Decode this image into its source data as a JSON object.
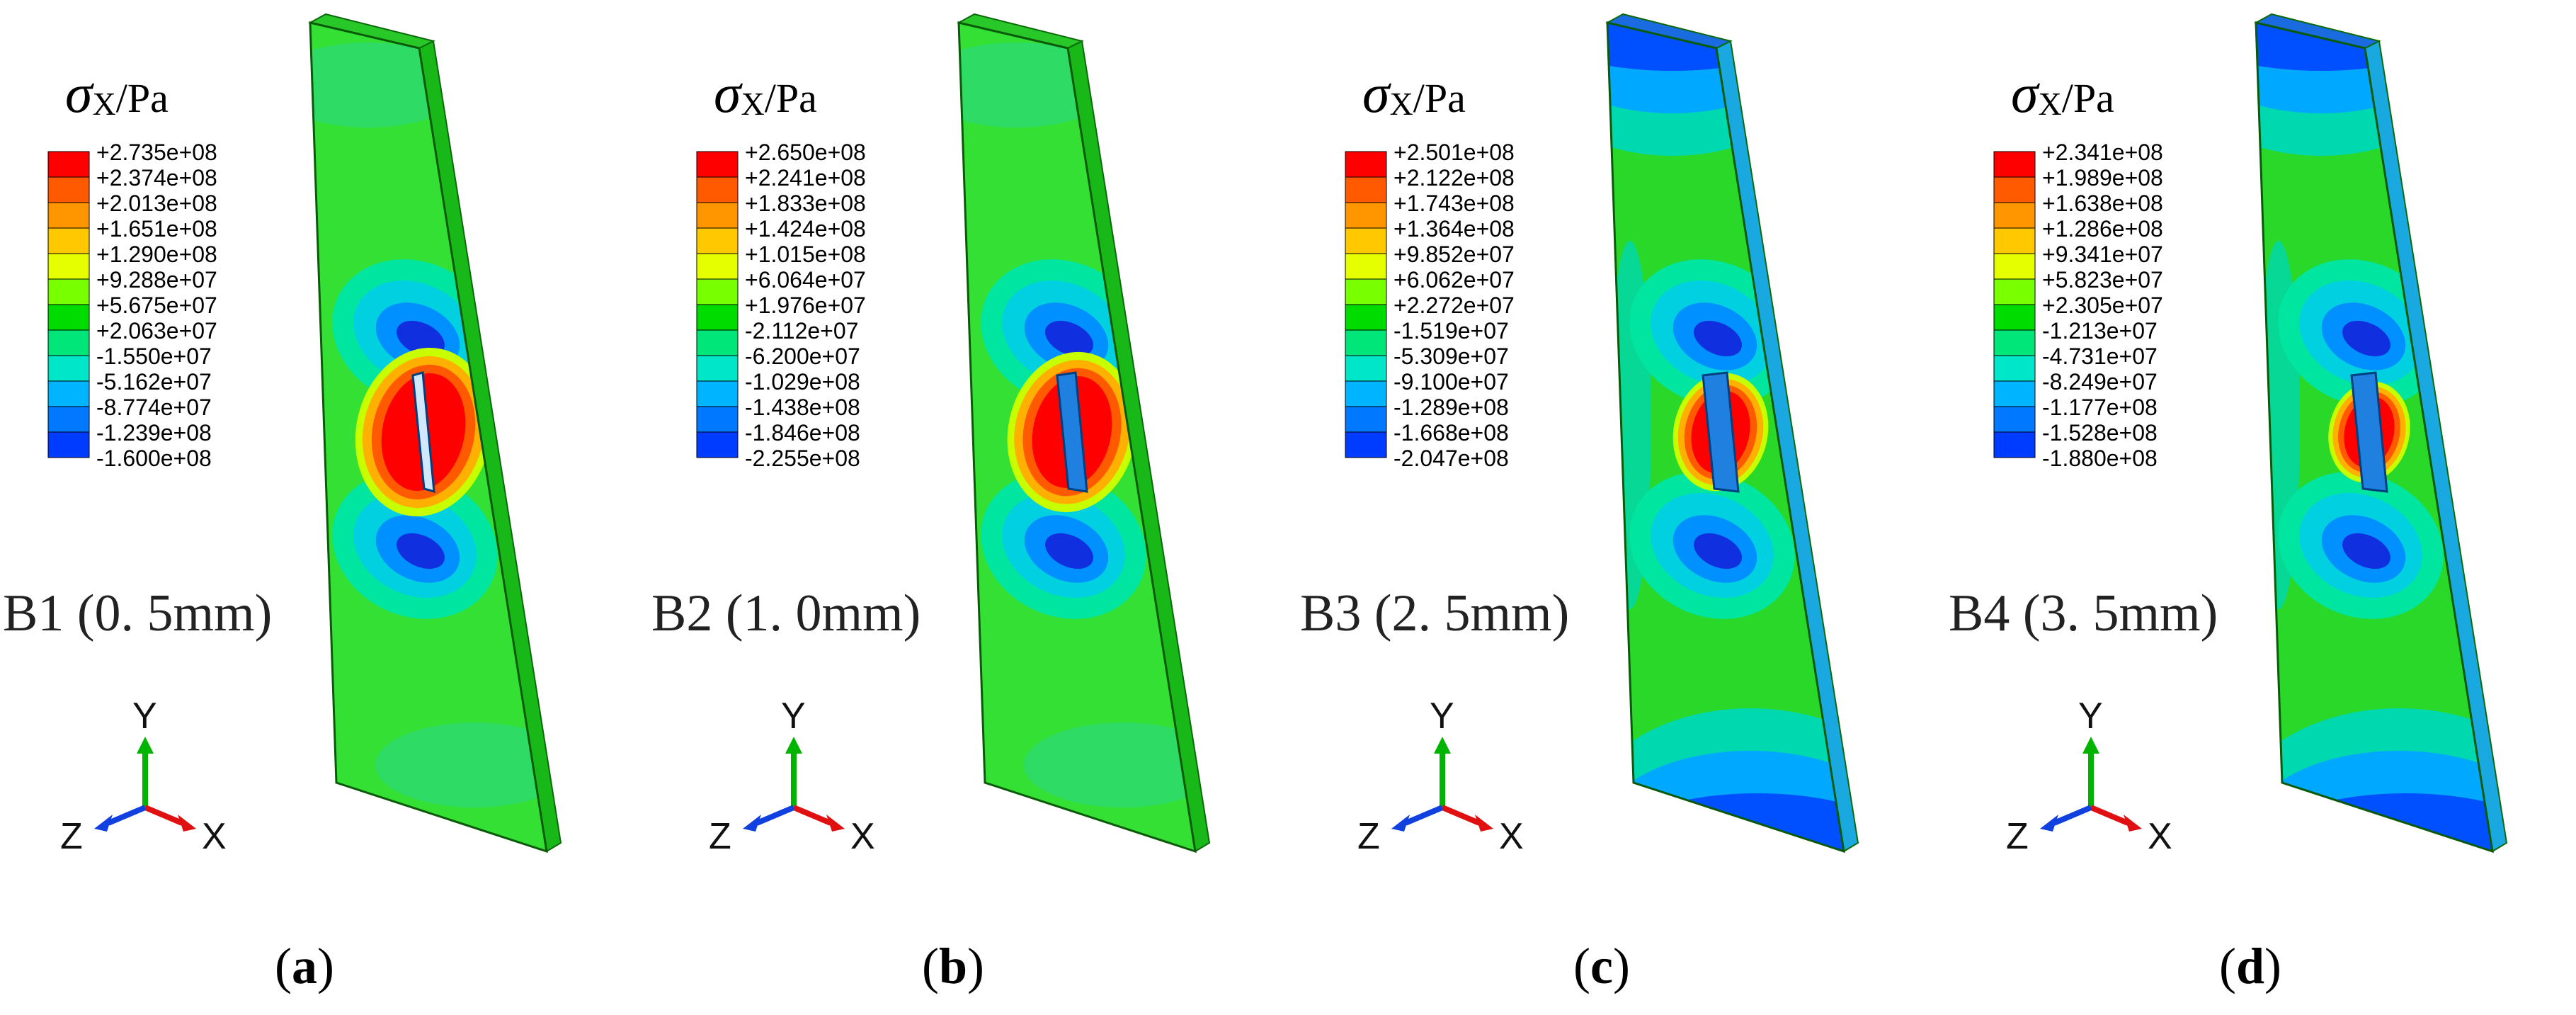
{
  "panels": [
    {
      "id": "a",
      "caption_letter": "a",
      "specimen_label": "B1 (0. 5mm)",
      "legend": {
        "symbol": "σ",
        "subscript": "X",
        "unit": "/Pa",
        "values": [
          "+2.735e+08",
          "+2.374e+08",
          "+2.013e+08",
          "+1.651e+08",
          "+1.290e+08",
          "+9.288e+07",
          "+5.675e+07",
          "+2.063e+07",
          "-1.550e+07",
          "-5.162e+07",
          "-8.774e+07",
          "-1.239e+08",
          "-1.600e+08"
        ]
      },
      "triad": {
        "y": "Y",
        "z": "Z",
        "x": "X"
      }
    },
    {
      "id": "b",
      "caption_letter": "b",
      "specimen_label": "B2 (1. 0mm)",
      "legend": {
        "symbol": "σ",
        "subscript": "X",
        "unit": "/Pa",
        "values": [
          "+2.650e+08",
          "+2.241e+08",
          "+1.833e+08",
          "+1.424e+08",
          "+1.015e+08",
          "+6.064e+07",
          "+1.976e+07",
          "-2.112e+07",
          "-6.200e+07",
          "-1.029e+08",
          "-1.438e+08",
          "-1.846e+08",
          "-2.255e+08"
        ]
      },
      "triad": {
        "y": "Y",
        "z": "Z",
        "x": "X"
      }
    },
    {
      "id": "c",
      "caption_letter": "c",
      "specimen_label": "B3 (2. 5mm)",
      "legend": {
        "symbol": "σ",
        "subscript": "X",
        "unit": "/Pa",
        "values": [
          "+2.501e+08",
          "+2.122e+08",
          "+1.743e+08",
          "+1.364e+08",
          "+9.852e+07",
          "+6.062e+07",
          "+2.272e+07",
          "-1.519e+07",
          "-5.309e+07",
          "-9.100e+07",
          "-1.289e+08",
          "-1.668e+08",
          "-2.047e+08"
        ]
      },
      "triad": {
        "y": "Y",
        "z": "Z",
        "x": "X"
      }
    },
    {
      "id": "d",
      "caption_letter": "d",
      "specimen_label": "B4 (3. 5mm)",
      "legend": {
        "symbol": "σ",
        "subscript": "X",
        "unit": "/Pa",
        "values": [
          "+2.341e+08",
          "+1.989e+08",
          "+1.638e+08",
          "+1.286e+08",
          "+9.341e+07",
          "+5.823e+07",
          "+2.305e+07",
          "-1.213e+07",
          "-4.731e+07",
          "-8.249e+07",
          "-1.177e+08",
          "-1.528e+08",
          "-1.880e+08"
        ]
      },
      "triad": {
        "y": "Y",
        "z": "Z",
        "x": "X"
      }
    }
  ],
  "colors": {
    "contour_scale": [
      "#ff0000",
      "#ff5a00",
      "#ff9600",
      "#ffc800",
      "#e6ff00",
      "#78ff00",
      "#00dc00",
      "#00e678",
      "#00e6c8",
      "#00b4ff",
      "#0078ff",
      "#003cff",
      "#0000ff"
    ],
    "plate_base": "#33e033",
    "axis_y": "#00b400",
    "axis_x": "#e01010",
    "axis_z": "#1040e0"
  }
}
